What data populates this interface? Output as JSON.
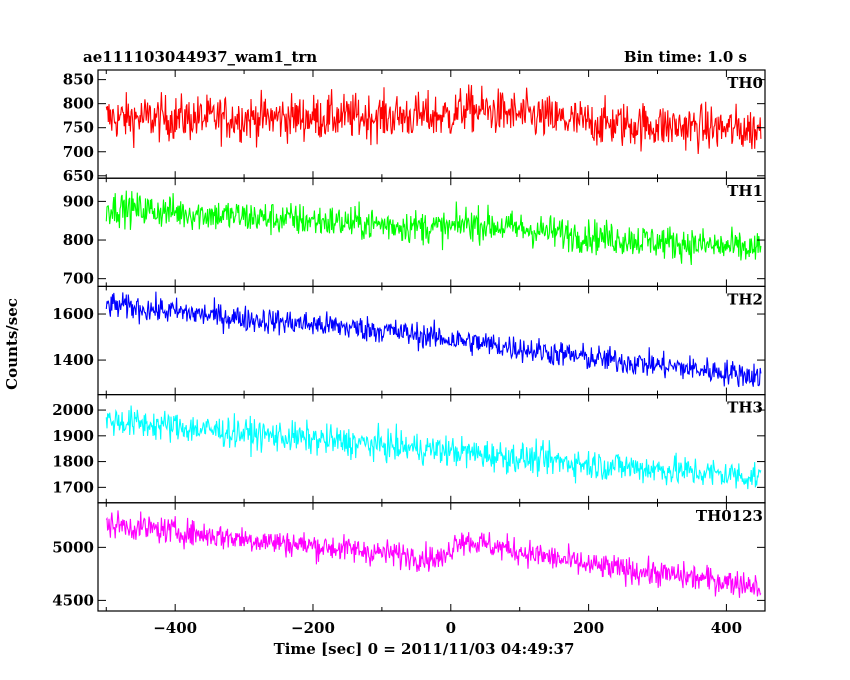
{
  "chart_data": {
    "type": "line",
    "title": "ae111103044937_wam1_trn",
    "bin_time": "Bin time: 1.0 s",
    "xlabel": "Time [sec] 0 = 2011/11/03 04:49:37",
    "ylabel": "Counts/sec",
    "xlim": [
      -512,
      456
    ],
    "x_range": [
      -500,
      450
    ],
    "xticks": [
      -400,
      -200,
      0,
      200,
      400
    ],
    "xtick_labels": [
      "−400",
      "−200",
      "0",
      "200",
      "400"
    ],
    "panels": [
      {
        "name": "TH0",
        "color": "#ff0000",
        "ylim": [
          645,
          870
        ],
        "yticks": [
          650,
          700,
          750,
          800,
          850
        ],
        "ytick_labels": [
          "650",
          "700",
          "750",
          "800",
          "850"
        ],
        "trend": [
          [
            -500,
            770
          ],
          [
            -300,
            770
          ],
          [
            0,
            775
          ],
          [
            20,
            790
          ],
          [
            200,
            760
          ],
          [
            450,
            745
          ]
        ],
        "noise": 38
      },
      {
        "name": "TH1",
        "color": "#00ff00",
        "ylim": [
          680,
          960
        ],
        "yticks": [
          700,
          800,
          900
        ],
        "ytick_labels": [
          "700",
          "800",
          "900"
        ],
        "trend": [
          [
            -500,
            885
          ],
          [
            -300,
            860
          ],
          [
            0,
            830
          ],
          [
            20,
            845
          ],
          [
            200,
            810
          ],
          [
            450,
            775
          ]
        ],
        "noise": 35
      },
      {
        "name": "TH2",
        "color": "#0000ff",
        "ylim": [
          1250,
          1720
        ],
        "yticks": [
          1400,
          1600
        ],
        "ytick_labels": [
          "1400",
          "1600"
        ],
        "trend": [
          [
            -500,
            1640
          ],
          [
            -300,
            1580
          ],
          [
            -100,
            1530
          ],
          [
            0,
            1490
          ],
          [
            200,
            1410
          ],
          [
            450,
            1330
          ]
        ],
        "noise": 45
      },
      {
        "name": "TH3",
        "color": "#00ffff",
        "ylim": [
          1640,
          2060
        ],
        "yticks": [
          1700,
          1800,
          1900,
          2000
        ],
        "ytick_labels": [
          "1700",
          "1800",
          "1900",
          "2000"
        ],
        "trend": [
          [
            -500,
            1960
          ],
          [
            -300,
            1910
          ],
          [
            0,
            1840
          ],
          [
            200,
            1790
          ],
          [
            450,
            1740
          ]
        ],
        "noise": 48
      },
      {
        "name": "TH0123",
        "color": "#ff00ff",
        "ylim": [
          4400,
          5420
        ],
        "yticks": [
          4500,
          5000
        ],
        "ytick_labels": [
          "4500",
          "5000"
        ],
        "trend": [
          [
            -500,
            5220
          ],
          [
            -300,
            5080
          ],
          [
            -10,
            4890
          ],
          [
            10,
            5080
          ],
          [
            200,
            4830
          ],
          [
            450,
            4640
          ]
        ],
        "noise": 100
      }
    ]
  }
}
